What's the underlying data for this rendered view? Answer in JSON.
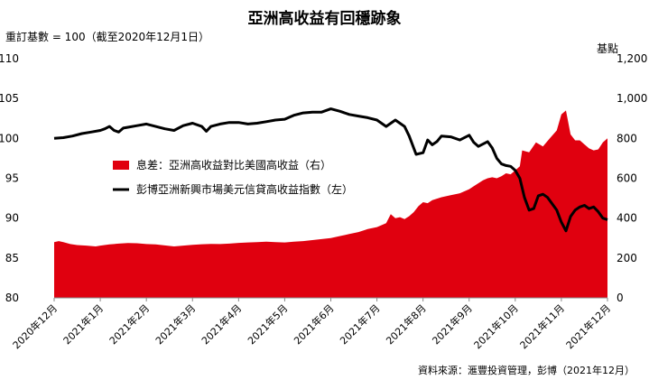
{
  "chart_data": {
    "type": "line+area",
    "title": "亞洲高收益有回穩跡象",
    "left_axis_note": "重訂基數 = 100（截至2020年12月1日）",
    "right_axis_note": "基點",
    "source": "資料來源：滙豐投資管理，彭博（2021年12月）",
    "left_axis": {
      "min": 80,
      "max": 110,
      "ticks": [
        "80",
        "85",
        "90",
        "95",
        "100",
        "105",
        "110"
      ]
    },
    "right_axis": {
      "min": 0,
      "max": 1200,
      "ticks": [
        "0",
        "200",
        "400",
        "600",
        "800",
        "1,000",
        "1,200"
      ]
    },
    "x_labels": [
      "2020年12月",
      "2021年1月",
      "2021年2月",
      "2021年3月",
      "2021年4月",
      "2021年5月",
      "2021年6月",
      "2021年7月",
      "2021年8月",
      "2021年9月",
      "2021年10月",
      "2021年11月",
      "2021年12月"
    ],
    "colors": {
      "area": "#e0000f",
      "line": "#000000"
    },
    "series": [
      {
        "name": "息差：亞洲高收益對比美國高收益（右）",
        "type": "area",
        "axis": "right",
        "points": [
          [
            0,
            280
          ],
          [
            0.1,
            285
          ],
          [
            0.2,
            280
          ],
          [
            0.35,
            270
          ],
          [
            0.5,
            265
          ],
          [
            0.7,
            262
          ],
          [
            0.9,
            258
          ],
          [
            1.0,
            262
          ],
          [
            1.2,
            268
          ],
          [
            1.4,
            272
          ],
          [
            1.6,
            275
          ],
          [
            1.8,
            274
          ],
          [
            2.0,
            270
          ],
          [
            2.2,
            268
          ],
          [
            2.4,
            263
          ],
          [
            2.6,
            258
          ],
          [
            2.8,
            262
          ],
          [
            3.0,
            266
          ],
          [
            3.2,
            269
          ],
          [
            3.4,
            271
          ],
          [
            3.6,
            270
          ],
          [
            3.8,
            272
          ],
          [
            4.0,
            276
          ],
          [
            4.2,
            278
          ],
          [
            4.4,
            280
          ],
          [
            4.6,
            282
          ],
          [
            4.8,
            280
          ],
          [
            5.0,
            278
          ],
          [
            5.2,
            282
          ],
          [
            5.4,
            285
          ],
          [
            5.6,
            290
          ],
          [
            5.8,
            295
          ],
          [
            6.0,
            300
          ],
          [
            6.2,
            310
          ],
          [
            6.4,
            320
          ],
          [
            6.6,
            330
          ],
          [
            6.8,
            345
          ],
          [
            7.0,
            355
          ],
          [
            7.2,
            375
          ],
          [
            7.3,
            420
          ],
          [
            7.4,
            400
          ],
          [
            7.5,
            405
          ],
          [
            7.6,
            395
          ],
          [
            7.7,
            410
          ],
          [
            7.8,
            430
          ],
          [
            7.9,
            460
          ],
          [
            8.0,
            480
          ],
          [
            8.1,
            475
          ],
          [
            8.2,
            490
          ],
          [
            8.4,
            505
          ],
          [
            8.6,
            515
          ],
          [
            8.8,
            525
          ],
          [
            9.0,
            545
          ],
          [
            9.1,
            560
          ],
          [
            9.2,
            575
          ],
          [
            9.3,
            590
          ],
          [
            9.4,
            600
          ],
          [
            9.5,
            605
          ],
          [
            9.6,
            600
          ],
          [
            9.7,
            610
          ],
          [
            9.8,
            625
          ],
          [
            9.9,
            620
          ],
          [
            10.0,
            640
          ],
          [
            10.1,
            660
          ],
          [
            10.15,
            740
          ],
          [
            10.3,
            730
          ],
          [
            10.45,
            780
          ],
          [
            10.6,
            760
          ],
          [
            10.75,
            800
          ],
          [
            10.9,
            840
          ],
          [
            11.0,
            920
          ],
          [
            11.1,
            940
          ],
          [
            11.2,
            820
          ],
          [
            11.3,
            790
          ],
          [
            11.4,
            790
          ],
          [
            11.5,
            770
          ],
          [
            11.6,
            750
          ],
          [
            11.7,
            740
          ],
          [
            11.8,
            745
          ],
          [
            11.9,
            780
          ],
          [
            12.0,
            800
          ]
        ]
      },
      {
        "name": "彭博亞洲新興市場美元信貸高收益指數（左）",
        "type": "line",
        "axis": "left",
        "points": [
          [
            0,
            100.0
          ],
          [
            0.2,
            100.1
          ],
          [
            0.4,
            100.3
          ],
          [
            0.6,
            100.6
          ],
          [
            0.8,
            100.8
          ],
          [
            1.0,
            101.0
          ],
          [
            1.1,
            101.2
          ],
          [
            1.2,
            101.5
          ],
          [
            1.3,
            101.0
          ],
          [
            1.4,
            100.8
          ],
          [
            1.5,
            101.3
          ],
          [
            1.6,
            101.4
          ],
          [
            1.8,
            101.6
          ],
          [
            2.0,
            101.8
          ],
          [
            2.2,
            101.5
          ],
          [
            2.4,
            101.2
          ],
          [
            2.6,
            101.0
          ],
          [
            2.8,
            101.6
          ],
          [
            3.0,
            101.9
          ],
          [
            3.2,
            101.5
          ],
          [
            3.3,
            100.9
          ],
          [
            3.4,
            101.5
          ],
          [
            3.6,
            101.8
          ],
          [
            3.8,
            102.0
          ],
          [
            4.0,
            102.0
          ],
          [
            4.2,
            101.8
          ],
          [
            4.4,
            101.9
          ],
          [
            4.6,
            102.1
          ],
          [
            4.8,
            102.3
          ],
          [
            5.0,
            102.4
          ],
          [
            5.2,
            102.9
          ],
          [
            5.4,
            103.2
          ],
          [
            5.6,
            103.3
          ],
          [
            5.8,
            103.3
          ],
          [
            6.0,
            103.7
          ],
          [
            6.2,
            103.4
          ],
          [
            6.4,
            103.0
          ],
          [
            6.6,
            102.8
          ],
          [
            6.8,
            102.6
          ],
          [
            7.0,
            102.3
          ],
          [
            7.2,
            101.5
          ],
          [
            7.4,
            102.3
          ],
          [
            7.6,
            101.5
          ],
          [
            7.7,
            100.3
          ],
          [
            7.85,
            98.0
          ],
          [
            8.0,
            98.2
          ],
          [
            8.1,
            99.8
          ],
          [
            8.2,
            99.2
          ],
          [
            8.3,
            99.6
          ],
          [
            8.4,
            100.3
          ],
          [
            8.6,
            100.2
          ],
          [
            8.8,
            99.8
          ],
          [
            9.0,
            100.4
          ],
          [
            9.1,
            99.5
          ],
          [
            9.2,
            99.0
          ],
          [
            9.4,
            99.6
          ],
          [
            9.5,
            98.8
          ],
          [
            9.6,
            97.5
          ],
          [
            9.7,
            96.8
          ],
          [
            9.8,
            96.6
          ],
          [
            9.9,
            96.5
          ],
          [
            10.0,
            96.0
          ],
          [
            10.1,
            95.0
          ],
          [
            10.2,
            92.6
          ],
          [
            10.3,
            91.0
          ],
          [
            10.4,
            91.2
          ],
          [
            10.5,
            92.8
          ],
          [
            10.6,
            93.0
          ],
          [
            10.7,
            92.6
          ],
          [
            10.8,
            91.8
          ],
          [
            10.9,
            91.0
          ],
          [
            11.0,
            89.5
          ],
          [
            11.1,
            88.4
          ],
          [
            11.2,
            90.2
          ],
          [
            11.3,
            91.0
          ],
          [
            11.4,
            91.4
          ],
          [
            11.5,
            91.6
          ],
          [
            11.6,
            91.2
          ],
          [
            11.7,
            91.4
          ],
          [
            11.8,
            90.8
          ],
          [
            11.9,
            90.0
          ],
          [
            12.0,
            89.8
          ]
        ]
      }
    ]
  }
}
